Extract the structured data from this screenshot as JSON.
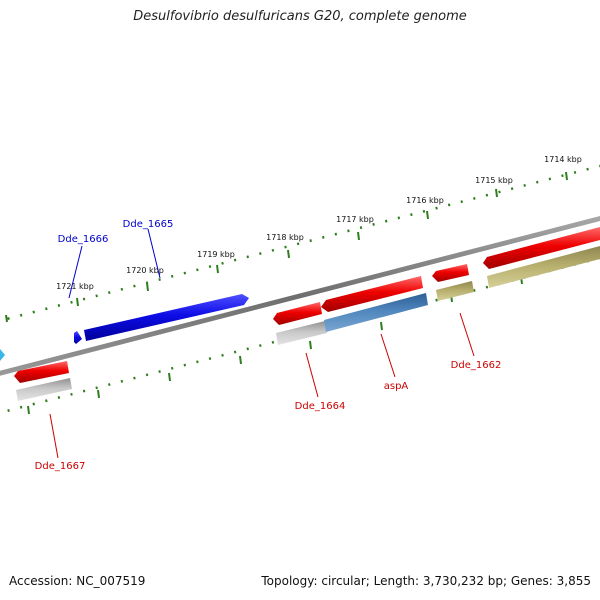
{
  "title": "Desulfovibrio desulfuricans G20, complete genome",
  "footer": {
    "accession": "Accession: NC_007519",
    "summary": "Topology: circular; Length: 3,730,232 bp; Genes: 3,855"
  },
  "kbp_labels": [
    "1714 kbp",
    "1715 kbp",
    "1716 kbp",
    "1717 kbp",
    "1718 kbp",
    "1719 kbp",
    "1720 kbp",
    "1721 kbp"
  ],
  "gene_labels": [
    {
      "id": "Dde_1666",
      "color": "#0000cc"
    },
    {
      "id": "Dde_1665",
      "color": "#0000cc"
    },
    {
      "id": "Dde_1664",
      "color": "#cc0000"
    },
    {
      "id": "aspA",
      "color": "#cc0000"
    },
    {
      "id": "Dde_1662",
      "color": "#cc0000"
    },
    {
      "id": "Dde_1667",
      "color": "#cc0000"
    }
  ],
  "colors": {
    "backbone": "#7a7a7a",
    "tick_track": "#2e7d1e",
    "forward_gene": "#1010e8",
    "reverse_gene": "#e80000",
    "cds_gray": "#b0b0b0",
    "cds_steelblue": "#4f7eb0",
    "cds_olive": "#b5ad6a",
    "edge_cyan": "#35b8e8"
  }
}
